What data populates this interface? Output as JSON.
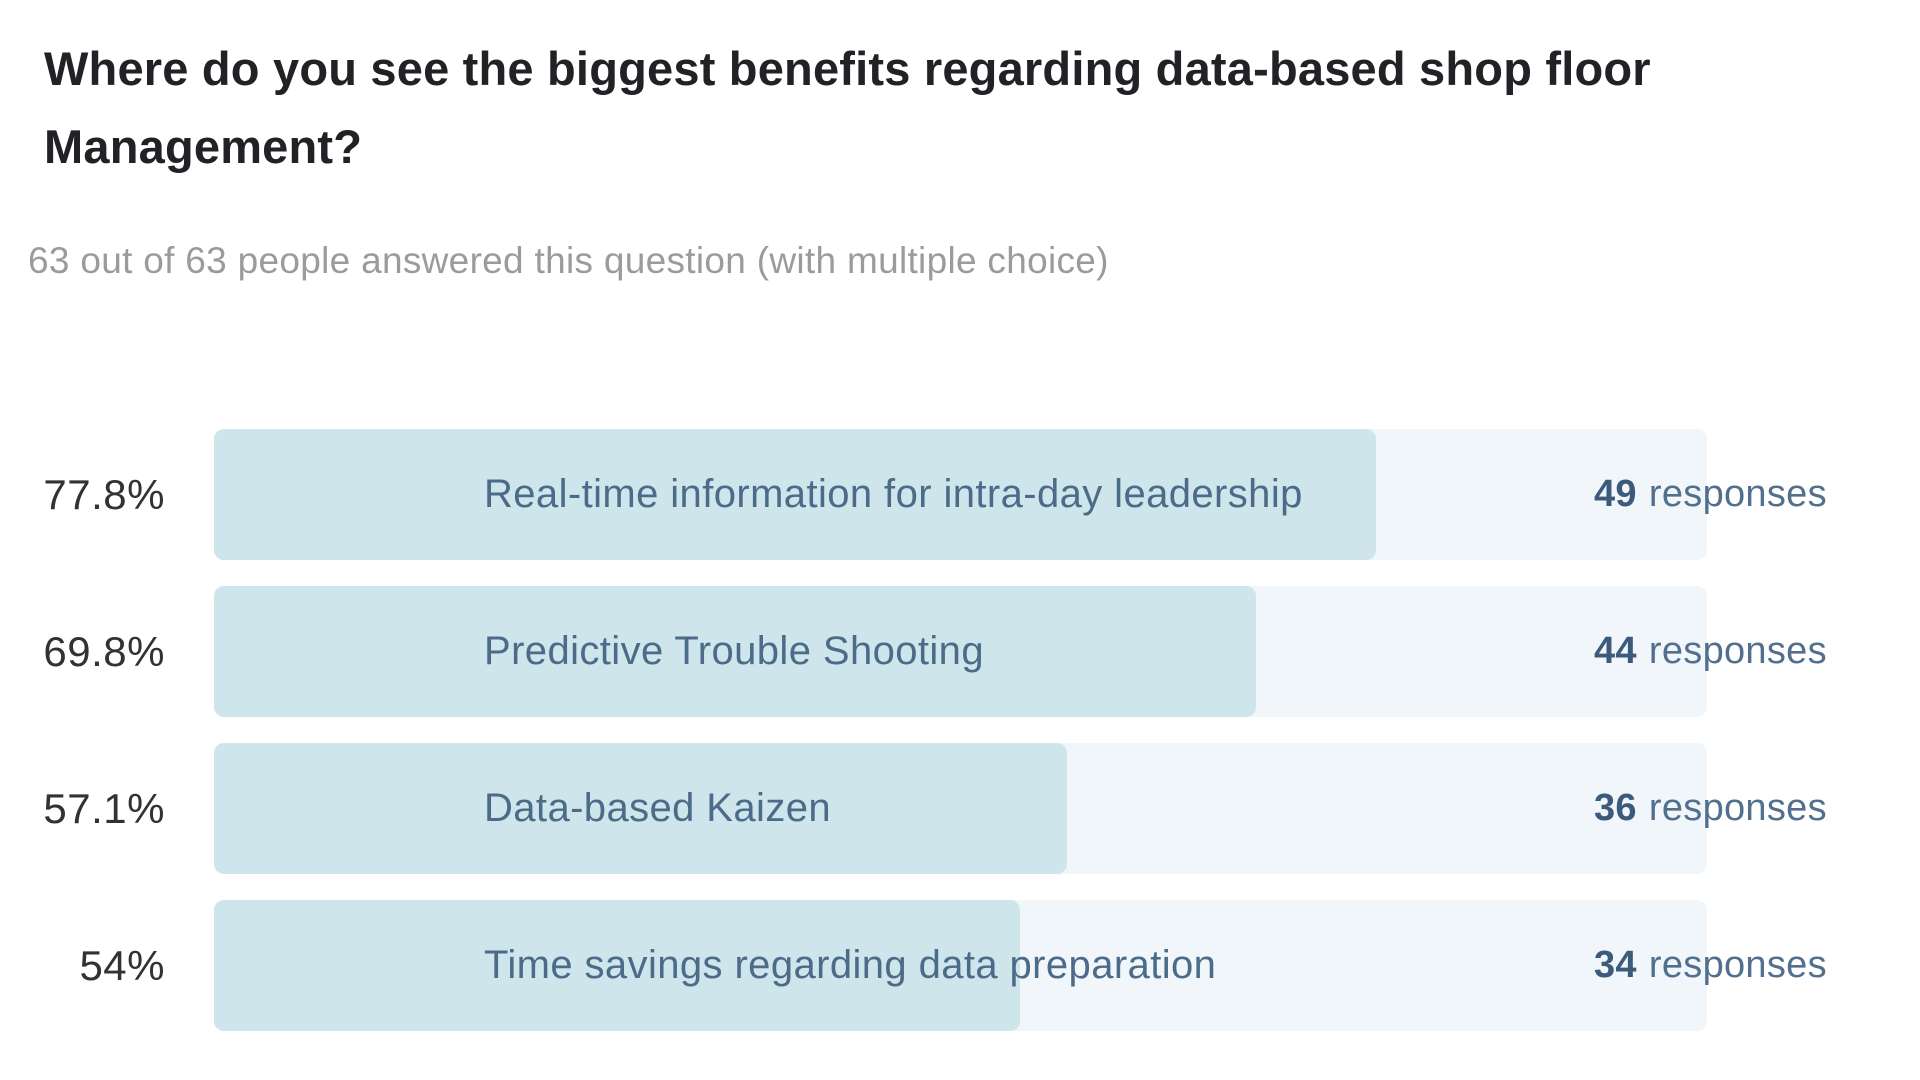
{
  "question": {
    "title": "Where do you see the biggest benefits regarding data-based shop floor Management?",
    "subtitle": "63 out of 63 people answered this question (with multiple choice)"
  },
  "results": [
    {
      "percent": "77.8%",
      "label": "Real-time information for intra-day leadership",
      "count": "49",
      "responses_word": "responses"
    },
    {
      "percent": "69.8%",
      "label": "Predictive Trouble Shooting",
      "count": "44",
      "responses_word": "responses"
    },
    {
      "percent": "57.1%",
      "label": "Data-based Kaizen",
      "count": "36",
      "responses_word": "responses"
    },
    {
      "percent": "54%",
      "label": "Time savings regarding data preparation",
      "count": "34",
      "responses_word": "responses"
    }
  ],
  "colors": {
    "bar_fill": "#cde5eb",
    "bar_track": "#f0f6fa",
    "bar_text": "#4c6b89",
    "count_text": "#3c5a7a",
    "percent_text": "#323232",
    "title_text": "#212226",
    "subtitle_text": "#9b9b9b"
  },
  "chart_data": {
    "type": "bar",
    "orientation": "horizontal",
    "title": "Where do you see the biggest benefits regarding data-based shop floor Management?",
    "subtitle": "63 out of 63 people answered this question (with multiple choice)",
    "categories": [
      "Real-time information for intra-day leadership",
      "Predictive Trouble Shooting",
      "Data-based Kaizen",
      "Time savings regarding data preparation"
    ],
    "series": [
      {
        "name": "responses",
        "values": [
          49,
          44,
          36,
          34
        ]
      },
      {
        "name": "percent_of_respondents",
        "values": [
          77.8,
          69.8,
          57.1,
          54
        ]
      }
    ],
    "total_respondents": 63,
    "answered": 63,
    "multiple_choice": true,
    "xlabel": "",
    "ylabel": "",
    "xlim_percent": [
      0,
      100
    ],
    "grid": false,
    "legend": false,
    "value_labels": "percent left of bar, count right of bar"
  }
}
